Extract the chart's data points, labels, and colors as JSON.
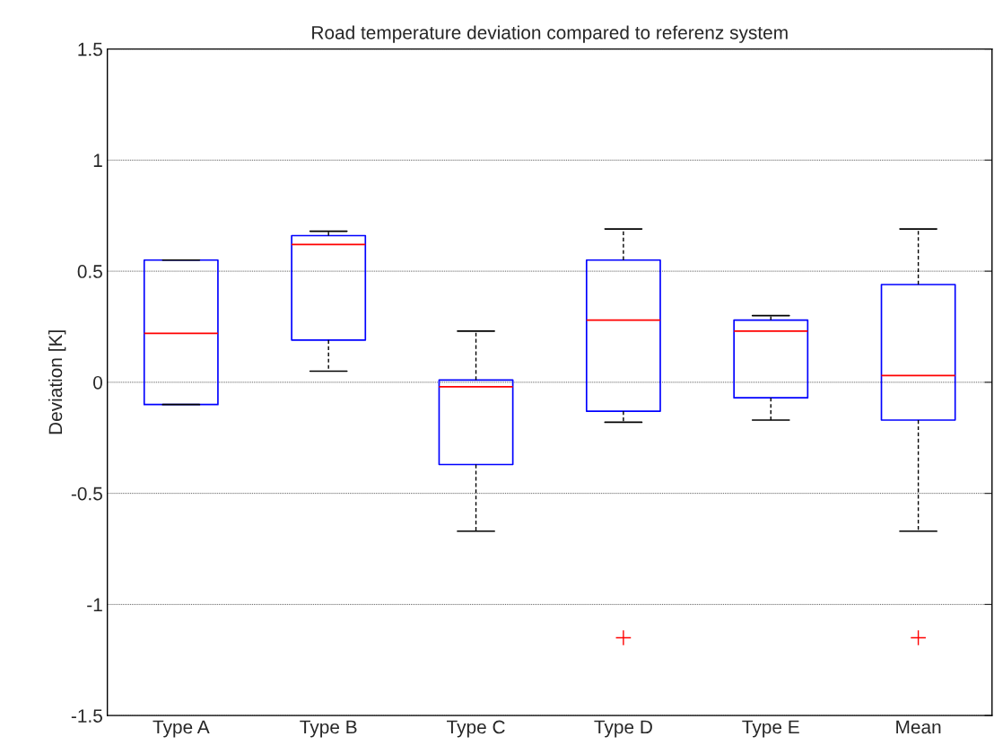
{
  "chart_data": {
    "type": "box",
    "title": "Road temperature deviation compared to referenz system",
    "ylabel": "Deviation [K]",
    "categories": [
      "Type A",
      "Type B",
      "Type C",
      "Type D",
      "Type E",
      "Mean"
    ],
    "series": [
      {
        "color": "#0000ff",
        "boxes": [
          {
            "low": -0.1,
            "q1": -0.1,
            "median": 0.22,
            "q3": 0.55,
            "high": 0.55
          },
          {
            "low": 0.05,
            "q1": 0.19,
            "median": 0.62,
            "q3": 0.66,
            "high": 0.68
          },
          {
            "low": -0.67,
            "q1": -0.37,
            "median": -0.02,
            "q3": 0.01,
            "high": 0.23
          },
          {
            "low": -0.18,
            "q1": -0.13,
            "median": 0.28,
            "q3": 0.55,
            "high": 0.69,
            "outliers": [
              -1.15
            ]
          },
          {
            "low": -0.17,
            "q1": -0.07,
            "median": 0.23,
            "q3": 0.28,
            "high": 0.3
          },
          {
            "low": -0.67,
            "q1": -0.17,
            "median": 0.03,
            "q3": 0.44,
            "high": 0.69,
            "outliers": [
              -1.15
            ]
          }
        ]
      }
    ],
    "ylim": [
      -1.5,
      1.5
    ],
    "yticks": [
      -1.5,
      -1,
      -0.5,
      0,
      0.5,
      1,
      1.5
    ],
    "grid": "y"
  }
}
